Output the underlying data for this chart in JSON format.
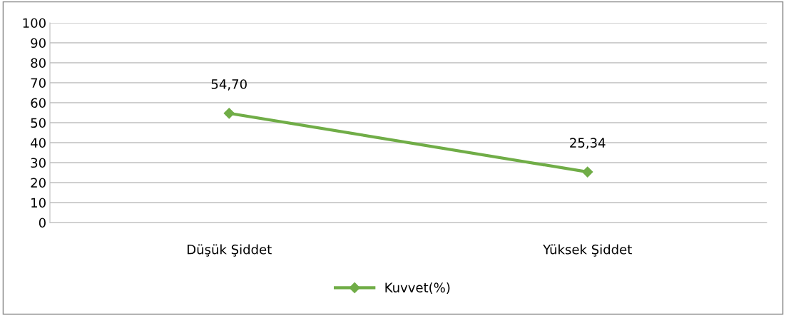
{
  "chart_data": {
    "type": "line",
    "categories": [
      "Düşük Şiddet",
      "Yüksek Şiddet"
    ],
    "series": [
      {
        "name": "Kuvvet(%)",
        "color": "#70ad47",
        "values": [
          54.7,
          25.34
        ],
        "value_labels": [
          "54,70",
          "25,34"
        ]
      }
    ],
    "ylim": [
      0,
      100
    ],
    "yticks": [
      0,
      10,
      20,
      30,
      40,
      50,
      60,
      70,
      80,
      90,
      100
    ],
    "grid": "y",
    "legend": "bottom",
    "marker": "diamond",
    "line_style": "solid"
  }
}
